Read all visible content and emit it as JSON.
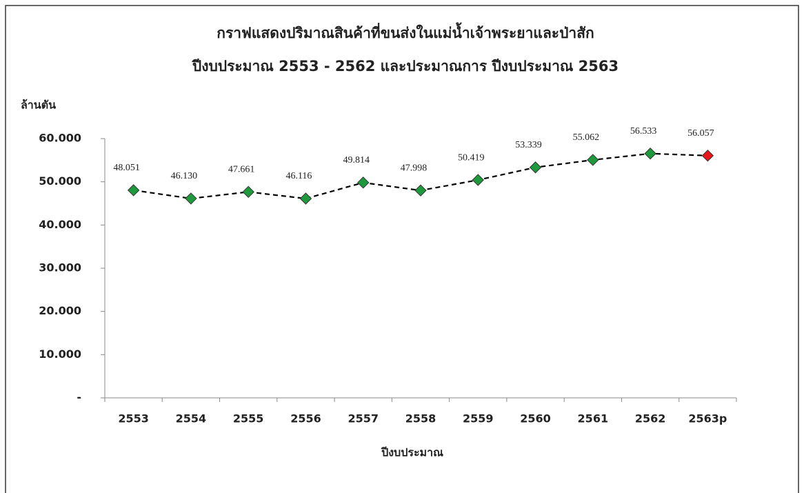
{
  "chart_data": {
    "type": "line",
    "title": "กราฟแสดงปริมาณสินค้าที่ขนส่งในแม่น้ำเจ้าพระยาและป่าสัก",
    "subtitle": "ปีงบประมาณ 2553 - 2562 และประมาณการ ปีงบประมาณ 2563",
    "y_label": "ล้านตัน",
    "x_label": "ปีงบประมาณ",
    "categories": [
      "2553",
      "2554",
      "2555",
      "2556",
      "2557",
      "2558",
      "2559",
      "2560",
      "2561",
      "2562",
      "2563p"
    ],
    "values": [
      48.051,
      46.13,
      47.661,
      46.116,
      49.814,
      47.998,
      50.419,
      53.339,
      55.062,
      56.533,
      56.057
    ],
    "value_labels": [
      "48.051",
      "46.130",
      "47.661",
      "46.116",
      "49.814",
      "47.998",
      "50.419",
      "53.339",
      "55.062",
      "56.533",
      "56.057"
    ],
    "line_color": "#000000",
    "line_style": "dashed",
    "marker": "diamond",
    "marker_colors": [
      "#1e9a3c",
      "#1e9a3c",
      "#1e9a3c",
      "#1e9a3c",
      "#1e9a3c",
      "#1e9a3c",
      "#1e9a3c",
      "#1e9a3c",
      "#1e9a3c",
      "#1e9a3c",
      "#e8141c"
    ],
    "ylim": [
      0,
      60
    ],
    "yticks": [
      {
        "value": 0,
        "label": "-"
      },
      {
        "value": 10,
        "label": "10.000"
      },
      {
        "value": 20,
        "label": "20.000"
      },
      {
        "value": 30,
        "label": "30.000"
      },
      {
        "value": 40,
        "label": "40.000"
      },
      {
        "value": 50,
        "label": "50.000"
      },
      {
        "value": 60,
        "label": "60.000"
      }
    ],
    "grid": false
  }
}
